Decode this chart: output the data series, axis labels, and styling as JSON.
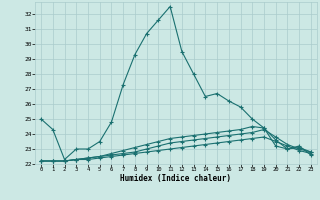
{
  "xlabel": "Humidex (Indice chaleur)",
  "ylabel": "",
  "bg_color": "#cce8e4",
  "grid_color": "#aacccc",
  "line_color": "#1a7070",
  "xlim": [
    -0.5,
    23.5
  ],
  "ylim": [
    22,
    32.8
  ],
  "yticks": [
    22,
    23,
    24,
    25,
    26,
    27,
    28,
    29,
    30,
    31,
    32
  ],
  "xticks": [
    0,
    1,
    2,
    3,
    4,
    5,
    6,
    7,
    8,
    9,
    10,
    11,
    12,
    13,
    14,
    15,
    16,
    17,
    18,
    19,
    20,
    21,
    22,
    23
  ],
  "line1_x": [
    0,
    1,
    2,
    3,
    4,
    5,
    6,
    7,
    8,
    9,
    10,
    11,
    12,
    13,
    14,
    15,
    16,
    17,
    18,
    19,
    20,
    21,
    22,
    23
  ],
  "line1_y": [
    25.0,
    24.3,
    22.3,
    23.0,
    23.0,
    23.5,
    24.8,
    27.3,
    29.3,
    30.7,
    31.6,
    32.5,
    29.5,
    28.0,
    26.5,
    26.7,
    26.2,
    25.8,
    25.0,
    24.4,
    23.2,
    23.0,
    23.2,
    22.6
  ],
  "line2_x": [
    0,
    1,
    2,
    3,
    4,
    5,
    6,
    7,
    8,
    9,
    10,
    11,
    12,
    13,
    14,
    15,
    16,
    17,
    18,
    19,
    20,
    21,
    22,
    23
  ],
  "line2_y": [
    22.2,
    22.2,
    22.2,
    22.3,
    22.3,
    22.4,
    22.5,
    22.6,
    22.7,
    22.8,
    22.9,
    23.0,
    23.1,
    23.2,
    23.3,
    23.4,
    23.5,
    23.6,
    23.7,
    23.8,
    23.5,
    23.2,
    22.9,
    22.7
  ],
  "line3_x": [
    0,
    1,
    2,
    3,
    4,
    5,
    6,
    7,
    8,
    9,
    10,
    11,
    12,
    13,
    14,
    15,
    16,
    17,
    18,
    19,
    20,
    21,
    22,
    23
  ],
  "line3_y": [
    22.2,
    22.2,
    22.2,
    22.3,
    22.4,
    22.5,
    22.6,
    22.7,
    22.8,
    23.0,
    23.2,
    23.4,
    23.5,
    23.6,
    23.7,
    23.8,
    23.9,
    24.0,
    24.1,
    24.3,
    23.8,
    23.3,
    23.0,
    22.8
  ],
  "line4_x": [
    0,
    1,
    2,
    3,
    4,
    5,
    6,
    7,
    8,
    9,
    10,
    11,
    12,
    13,
    14,
    15,
    16,
    17,
    18,
    19,
    20,
    21,
    22,
    23
  ],
  "line4_y": [
    22.2,
    22.2,
    22.2,
    22.3,
    22.4,
    22.5,
    22.7,
    22.9,
    23.1,
    23.3,
    23.5,
    23.7,
    23.8,
    23.9,
    24.0,
    24.1,
    24.2,
    24.3,
    24.5,
    24.4,
    23.6,
    23.0,
    23.1,
    22.8
  ]
}
